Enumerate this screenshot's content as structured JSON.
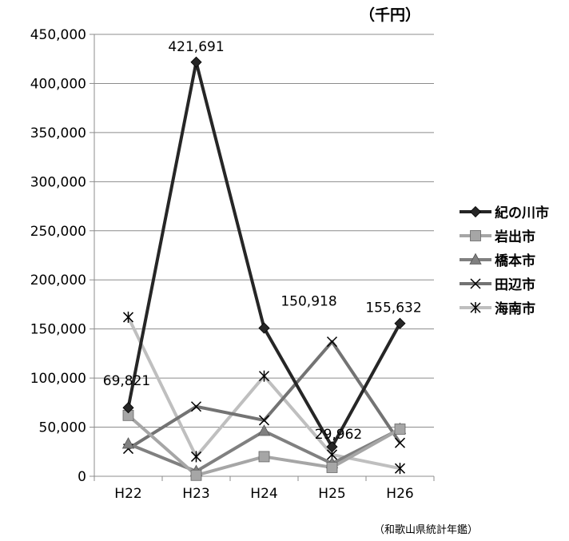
{
  "chart_data": {
    "type": "line",
    "unit_label": "（千円）",
    "source": "（和歌山県統計年鑑）",
    "categories": [
      "H22",
      "H23",
      "H24",
      "H25",
      "H26"
    ],
    "ylim": [
      0,
      450000
    ],
    "yticks": [
      0,
      50000,
      100000,
      150000,
      200000,
      250000,
      300000,
      350000,
      400000,
      450000
    ],
    "ytick_labels": [
      "0",
      "50,000",
      "100,000",
      "150,000",
      "200,000",
      "250,000",
      "300,000",
      "350,000",
      "400,000",
      "450,000"
    ],
    "grid": true,
    "legend": "right",
    "series": [
      {
        "name": "紀の川市",
        "color": "#262626",
        "marker": "diamond",
        "values": [
          69821,
          421691,
          150918,
          29962,
          155632
        ]
      },
      {
        "name": "岩出市",
        "color": "#a6a6a6",
        "marker": "square",
        "values": [
          62000,
          1000,
          20000,
          9000,
          48000
        ]
      },
      {
        "name": "橋本市",
        "color": "#808080",
        "marker": "triangle",
        "values": [
          33000,
          5000,
          46000,
          13000,
          48000
        ]
      },
      {
        "name": "田辺市",
        "color": "#737373",
        "marker": "x",
        "values": [
          28000,
          71000,
          57000,
          137000,
          34000
        ]
      },
      {
        "name": "海南市",
        "color": "#bfbfbf",
        "marker": "star",
        "values": [
          162000,
          20000,
          102000,
          22000,
          8000
        ]
      }
    ],
    "data_labels": [
      {
        "series": 0,
        "index": 0,
        "text": "69,821"
      },
      {
        "series": 0,
        "index": 1,
        "text": "421,691"
      },
      {
        "series": 0,
        "index": 2,
        "text": "150,918"
      },
      {
        "series": 0,
        "index": 3,
        "text": "29,962"
      },
      {
        "series": 0,
        "index": 4,
        "text": "155,632"
      }
    ]
  }
}
